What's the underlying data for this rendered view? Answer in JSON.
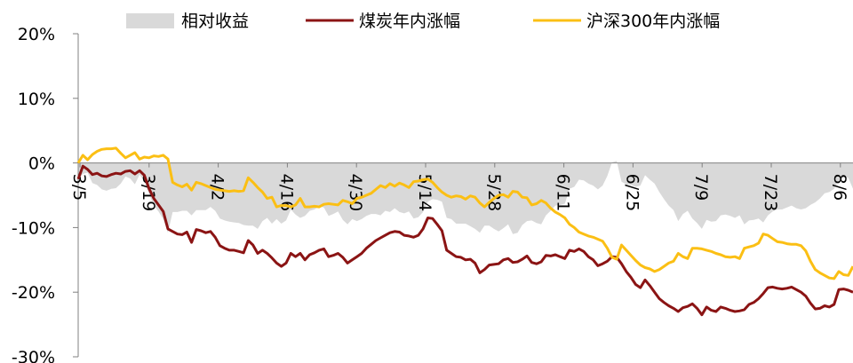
{
  "chart_data": {
    "type": "line",
    "legend": [
      {
        "label": "相对收益",
        "key": "relative",
        "color": "#d9d9d9"
      },
      {
        "label": "煤炭年内涨幅",
        "key": "coal",
        "color": "#8b1414"
      },
      {
        "label": "沪深300年内涨幅",
        "key": "csi300",
        "color": "#fbbf14"
      }
    ],
    "legend_position": "top",
    "y_ticks": [
      "20%",
      "10%",
      "0%",
      "-10%",
      "-20%",
      "-30%"
    ],
    "ylim": [
      -30,
      20
    ],
    "x_ticks": [
      "3/5",
      "3/19",
      "4/2",
      "4/16",
      "4/30",
      "5/14",
      "5/28",
      "6/11",
      "6/25",
      "7/9",
      "7/23",
      "8/6"
    ],
    "x_start": "3/5",
    "x_end": "8/9",
    "grid": false,
    "series": [
      {
        "name": "煤炭年内涨幅",
        "values": [
          -2.5,
          -0.5,
          -1,
          -1.8,
          -1.6,
          -2,
          -2.1,
          -1.8,
          -1.6,
          -1.7,
          -1.3,
          -1.2,
          -1.7,
          -1.2,
          -1.9,
          -4,
          -5.5,
          -6.5,
          -7.5,
          -10.2,
          -10.6,
          -11,
          -11.1,
          -10.7,
          -12.3,
          -10.3,
          -10.5,
          -10.8,
          -10.6,
          -11.5,
          -12.8,
          -13.2,
          -13.5,
          -13.5,
          -13.7,
          -13.9,
          -12,
          -12.7,
          -14,
          -13.5,
          -14,
          -14.7,
          -15.5,
          -16,
          -15.5,
          -14,
          -14.5,
          -14,
          -15,
          -14.2,
          -13.9,
          -13.5,
          -13.3,
          -14.5,
          -14.3,
          -14,
          -14.6,
          -15.5,
          -15,
          -14.5,
          -14,
          -13.2,
          -12.6,
          -12,
          -11.6,
          -11.2,
          -10.8,
          -10.6,
          -10.7,
          -11.2,
          -11.3,
          -11.5,
          -11.2,
          -10.2,
          -8.5,
          -8.6,
          -9.5,
          -10.5,
          -13.5,
          -14,
          -14.5,
          -14.6,
          -15,
          -14.9,
          -15.5,
          -17,
          -16.5,
          -15.8,
          -15.7,
          -15.6,
          -15,
          -14.8,
          -15.4,
          -15.3,
          -14.9,
          -14.4,
          -15.4,
          -15.6,
          -15.3,
          -14.3,
          -14.4,
          -14.2,
          -14.5,
          -14.8,
          -13.5,
          -13.7,
          -13.3,
          -13.7,
          -14.5,
          -15,
          -15.9,
          -15.6,
          -15.2,
          -14.5,
          -14.6,
          -15.6,
          -16.8,
          -17.7,
          -18.8,
          -19.3,
          -18.1,
          -19,
          -20,
          -21,
          -21.6,
          -22.1,
          -22.5,
          -23,
          -22.4,
          -22.2,
          -21.8,
          -22.5,
          -23.5,
          -22.3,
          -22.8,
          -23,
          -22.3,
          -22.5,
          -22.8,
          -23,
          -22.9,
          -22.7,
          -21.9,
          -21.6,
          -21,
          -20.2,
          -19.3,
          -19.2,
          -19.4,
          -19.5,
          -19.4,
          -19.2,
          -19.6,
          -20,
          -20.6,
          -21.7,
          -22.6,
          -22.5,
          -22.1,
          -22.3,
          -21.9,
          -19.6,
          -19.5,
          -19.7,
          -20
        ]
      },
      {
        "name": "沪深300年内涨幅",
        "values": [
          0,
          1.2,
          0.5,
          1.3,
          1.8,
          2.1,
          2.2,
          2.2,
          2.3,
          1.5,
          0.8,
          1.2,
          1.6,
          0.6,
          0.9,
          0.8,
          1.1,
          1,
          1.2,
          0.6,
          -3,
          -3.4,
          -3.7,
          -3.3,
          -4.2,
          -3,
          -3.2,
          -3.5,
          -3.8,
          -4.1,
          -4.2,
          -4.3,
          -4.4,
          -4.3,
          -4.4,
          -4.3,
          -2.3,
          -3,
          -3.8,
          -4.5,
          -5.5,
          -5.3,
          -6.8,
          -6.6,
          -6.6,
          -6.8,
          -6.5,
          -5.5,
          -6.8,
          -6.8,
          -6.7,
          -6.8,
          -6.4,
          -6.3,
          -6.4,
          -6.5,
          -5.8,
          -6,
          -6.3,
          -5.5,
          -5.3,
          -5,
          -4.7,
          -4.1,
          -3.5,
          -3.8,
          -3.2,
          -3.6,
          -3.1,
          -3.4,
          -3.8,
          -2.9,
          -2.8,
          -2.6,
          -2.5,
          -3,
          -3.8,
          -4.5,
          -5,
          -5.3,
          -5.1,
          -5.2,
          -5.6,
          -5.1,
          -5.3,
          -6.2,
          -6.8,
          -6.1,
          -5.5,
          -5,
          -4.9,
          -5.3,
          -4.4,
          -4.5,
          -5.3,
          -5.4,
          -6.5,
          -6.3,
          -5.8,
          -6.2,
          -7,
          -7.6,
          -8,
          -8.5,
          -9.5,
          -10,
          -10.7,
          -11,
          -11.3,
          -11.5,
          -11.8,
          -12.1,
          -13.2,
          -14.6,
          -14.9,
          -12.7,
          -13.5,
          -14.3,
          -15.1,
          -15.8,
          -16.2,
          -16.4,
          -16.8,
          -16.5,
          -16,
          -15.5,
          -15.2,
          -14,
          -14.5,
          -14.8,
          -13.2,
          -13.2,
          -13.3,
          -13.5,
          -13.7,
          -14,
          -14.2,
          -14.5,
          -14.6,
          -14.5,
          -14.8,
          -13.2,
          -13,
          -12.8,
          -12.4,
          -11,
          -11.2,
          -11.7,
          -12.2,
          -12.3,
          -12.5,
          -12.6,
          -12.6,
          -12.8,
          -13.6,
          -15.2,
          -16.5,
          -17,
          -17.4,
          -17.8,
          -17.9,
          -16.8,
          -17.3,
          -17.4,
          -16
        ]
      }
    ]
  }
}
